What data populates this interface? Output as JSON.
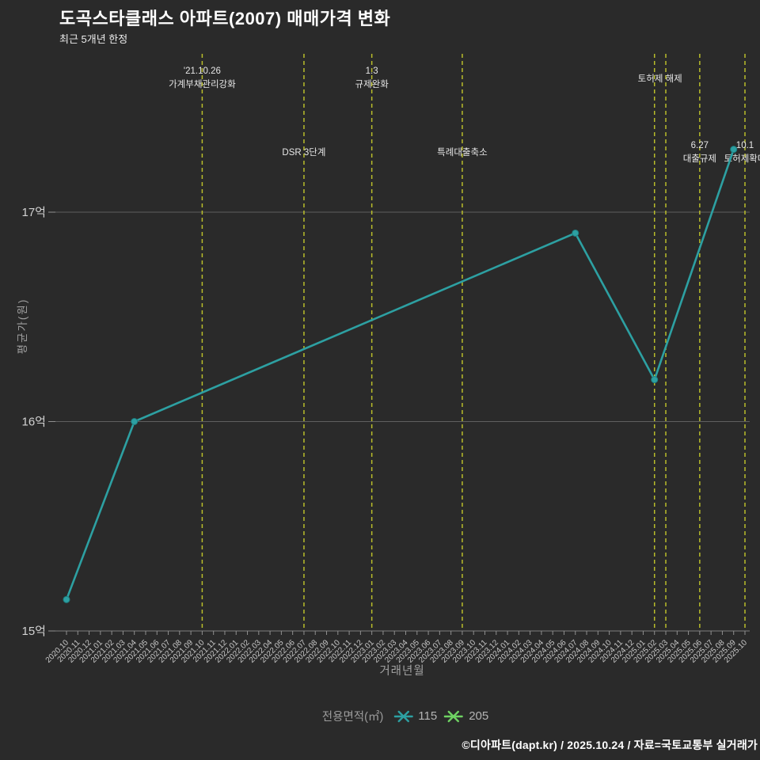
{
  "header": {
    "title": "도곡스타클래스 아파트(2007) 매매가격 변화",
    "subtitle": "최근 5개년 한정"
  },
  "axes": {
    "x_title": "거래년월",
    "y_title": "평균가(원)"
  },
  "legend": {
    "title": "전용면적(㎡)",
    "items": [
      {
        "label": "115",
        "color": "#2da0a2"
      },
      {
        "label": "205",
        "color": "#6fd363"
      }
    ]
  },
  "footer": {
    "credit": "©디아파트(dapt.kr) / 2025.10.24 / 자료=국토교통부 실거래가"
  },
  "colors": {
    "background": "#2a2a2a",
    "grid": "#8c8c8c",
    "axis_tick": "#909090",
    "tick_label": "#c8c8c8",
    "y_tick_label": "#d2d2d2",
    "event_line": "#b9bd2a",
    "annotation_text": "#e6e6e6",
    "series_115": "#2da0a2",
    "series_115_marker_edge": "#1d7e80",
    "series_205": "#6fd363"
  },
  "chart_data": {
    "type": "line",
    "title": "도곡스타클래스 아파트(2007) 매매가격 변화",
    "subtitle": "최근 5개년 한정",
    "xlabel": "거래년월",
    "ylabel": "평균가(원)",
    "y_unit": "억",
    "ylim": [
      15,
      17.76
    ],
    "yticks": [
      15,
      16,
      17
    ],
    "ytick_labels": [
      "15억",
      "16억",
      "17억"
    ],
    "grid": "horizontal",
    "legend_position": "bottom-center",
    "x_categories": [
      "2020.10",
      "2020.11",
      "2020.12",
      "2021.01",
      "2021.02",
      "2021.03",
      "2021.04",
      "2021.05",
      "2021.06",
      "2021.07",
      "2021.08",
      "2021.09",
      "2021.10",
      "2021.11",
      "2021.12",
      "2022.01",
      "2022.02",
      "2022.03",
      "2022.04",
      "2022.05",
      "2022.06",
      "2022.07",
      "2022.08",
      "2022.09",
      "2022.10",
      "2022.11",
      "2022.12",
      "2023.01",
      "2023.02",
      "2023.03",
      "2023.04",
      "2023.05",
      "2023.06",
      "2023.07",
      "2023.08",
      "2023.09",
      "2023.10",
      "2023.11",
      "2023.12",
      "2024.01",
      "2024.02",
      "2024.03",
      "2024.04",
      "2024.05",
      "2024.06",
      "2024.07",
      "2024.08",
      "2024.09",
      "2024.10",
      "2024.11",
      "2024.12",
      "2025.01",
      "2025.02",
      "2025.03",
      "2025.04",
      "2025.05",
      "2025.06",
      "2025.07",
      "2025.08",
      "2025.09",
      "2025.10"
    ],
    "series": [
      {
        "name": "115",
        "color": "#2da0a2",
        "points": [
          [
            "2020.10",
            15.15
          ],
          [
            "2021.04",
            16.0
          ],
          [
            "2024.07",
            16.9
          ],
          [
            "2025.02",
            16.2
          ],
          [
            "2025.09",
            17.3
          ]
        ]
      },
      {
        "name": "205",
        "color": "#6fd363",
        "points": []
      }
    ],
    "events": [
      {
        "date": "2021.10",
        "lines": [
          "'21.10.26",
          "가계부채관리강화"
        ],
        "label_baseline_y": 93
      },
      {
        "date": "2022.07",
        "lines": [
          "DSR 3단계"
        ],
        "label_baseline_y": 196
      },
      {
        "date": "2023.01",
        "lines": [
          "1.3",
          "규제완화"
        ],
        "label_baseline_y": 93
      },
      {
        "date": "2023.09",
        "lines": [
          "특례대출축소"
        ],
        "label_baseline_y": 196
      },
      {
        "date": "2025.02",
        "lines": [
          "토허제 해제"
        ],
        "label_baseline_y": 103,
        "label_dx": 7
      },
      {
        "date": "2025.03",
        "lines": []
      },
      {
        "date": "2025.06",
        "lines": [
          "6.27",
          "대출규제"
        ],
        "label_baseline_y": 187
      },
      {
        "date": "2025.10",
        "lines": [
          "10.1",
          "토허제확대"
        ],
        "label_baseline_y": 187
      }
    ]
  }
}
